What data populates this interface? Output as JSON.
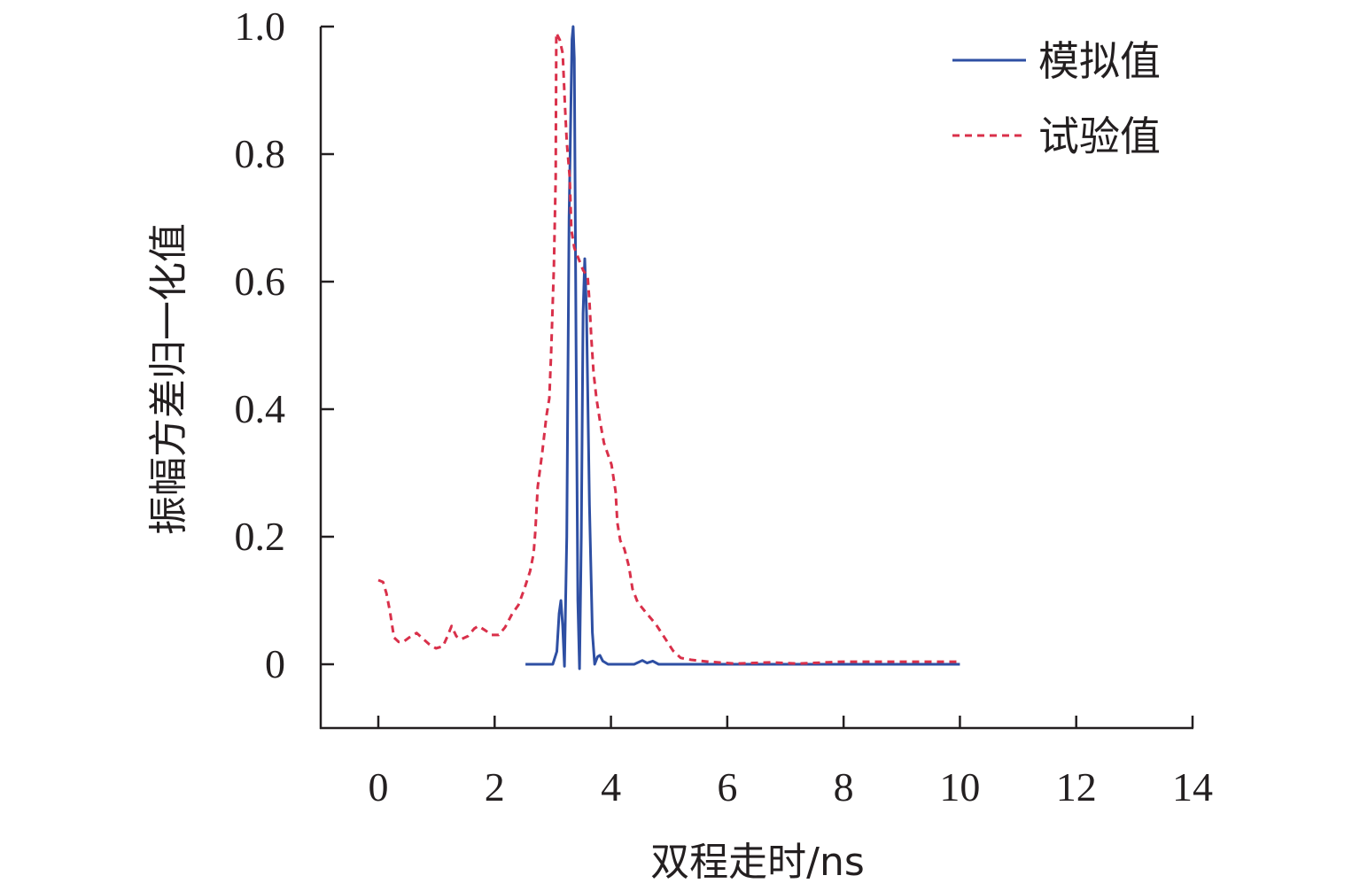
{
  "chart_data": {
    "type": "line",
    "title": "",
    "xlabel": "双程走时/ns",
    "ylabel": "振幅方差归一化值",
    "xlim": [
      -1,
      14
    ],
    "ylim": [
      -0.1,
      1.0
    ],
    "xticks": [
      0,
      2,
      4,
      6,
      8,
      10,
      12,
      14
    ],
    "xtick_labels": [
      "0",
      "2",
      "4",
      "6",
      "8",
      "10",
      "12",
      "14"
    ],
    "yticks": [
      0,
      0.2,
      0.4,
      0.6,
      0.8,
      1.0
    ],
    "ytick_labels": [
      "0",
      "0.2",
      "0.4",
      "0.6",
      "0.8",
      "1.0"
    ],
    "grid": false,
    "legend_position": "top-right",
    "series": [
      {
        "name": "模拟值",
        "style": "solid",
        "color": "#2e4fa3",
        "x": [
          2.53,
          3.0,
          3.07,
          3.11,
          3.14,
          3.17,
          3.2,
          3.24,
          3.28,
          3.33,
          3.35,
          3.37,
          3.4,
          3.43,
          3.46,
          3.49,
          3.52,
          3.55,
          3.58,
          3.63,
          3.68,
          3.72,
          3.77,
          3.81,
          3.86,
          3.95,
          4.4,
          4.54,
          4.62,
          4.72,
          4.82,
          10.0
        ],
        "y": [
          0,
          0,
          0.02,
          0.08,
          0.1,
          0.06,
          -0.003,
          0.2,
          0.7,
          0.98,
          1.0,
          0.95,
          0.5,
          0.1,
          -0.007,
          0.2,
          0.55,
          0.636,
          0.55,
          0.25,
          0.05,
          0,
          0.012,
          0.014,
          0.005,
          0,
          0,
          0.006,
          0.002,
          0.005,
          0,
          0
        ]
      },
      {
        "name": "试验值",
        "style": "dashed",
        "color": "#d9304a",
        "x": [
          0,
          0.08,
          0.14,
          0.2,
          0.27,
          0.35,
          0.43,
          0.53,
          0.66,
          0.78,
          0.88,
          0.99,
          1.11,
          1.19,
          1.26,
          1.34,
          1.42,
          1.54,
          1.65,
          1.72,
          1.84,
          1.95,
          2.07,
          2.18,
          2.3,
          2.41,
          2.51,
          2.61,
          2.67,
          2.7,
          2.74,
          2.82,
          2.89,
          2.94,
          2.97,
          3.02,
          3.05,
          3.06,
          3.12,
          3.17,
          3.21,
          3.24,
          3.29,
          3.32,
          3.37,
          3.43,
          3.52,
          3.6,
          3.63,
          3.66,
          3.7,
          3.75,
          3.81,
          3.88,
          4.01,
          4.08,
          4.11,
          4.16,
          4.23,
          4.31,
          4.37,
          4.46,
          4.62,
          4.77,
          4.92,
          5.07,
          5.2,
          5.38,
          5.68,
          6.14,
          6.75,
          7.21,
          7.97,
          8.73,
          10.02
        ],
        "y": [
          0.132,
          0.129,
          0.111,
          0.083,
          0.042,
          0.035,
          0.035,
          0.042,
          0.049,
          0.039,
          0.031,
          0.025,
          0.028,
          0.044,
          0.06,
          0.044,
          0.039,
          0.044,
          0.056,
          0.06,
          0.053,
          0.046,
          0.046,
          0.058,
          0.079,
          0.093,
          0.118,
          0.146,
          0.174,
          0.208,
          0.278,
          0.333,
          0.389,
          0.417,
          0.486,
          0.625,
          0.764,
          0.99,
          0.979,
          0.958,
          0.875,
          0.819,
          0.764,
          0.681,
          0.653,
          0.639,
          0.618,
          0.608,
          0.569,
          0.514,
          0.458,
          0.417,
          0.382,
          0.347,
          0.313,
          0.271,
          0.222,
          0.194,
          0.181,
          0.153,
          0.118,
          0.097,
          0.079,
          0.063,
          0.042,
          0.021,
          0.01,
          0.007,
          0.004,
          0.001,
          0.003,
          0.001,
          0.004,
          0.004,
          0.004
        ]
      }
    ]
  }
}
